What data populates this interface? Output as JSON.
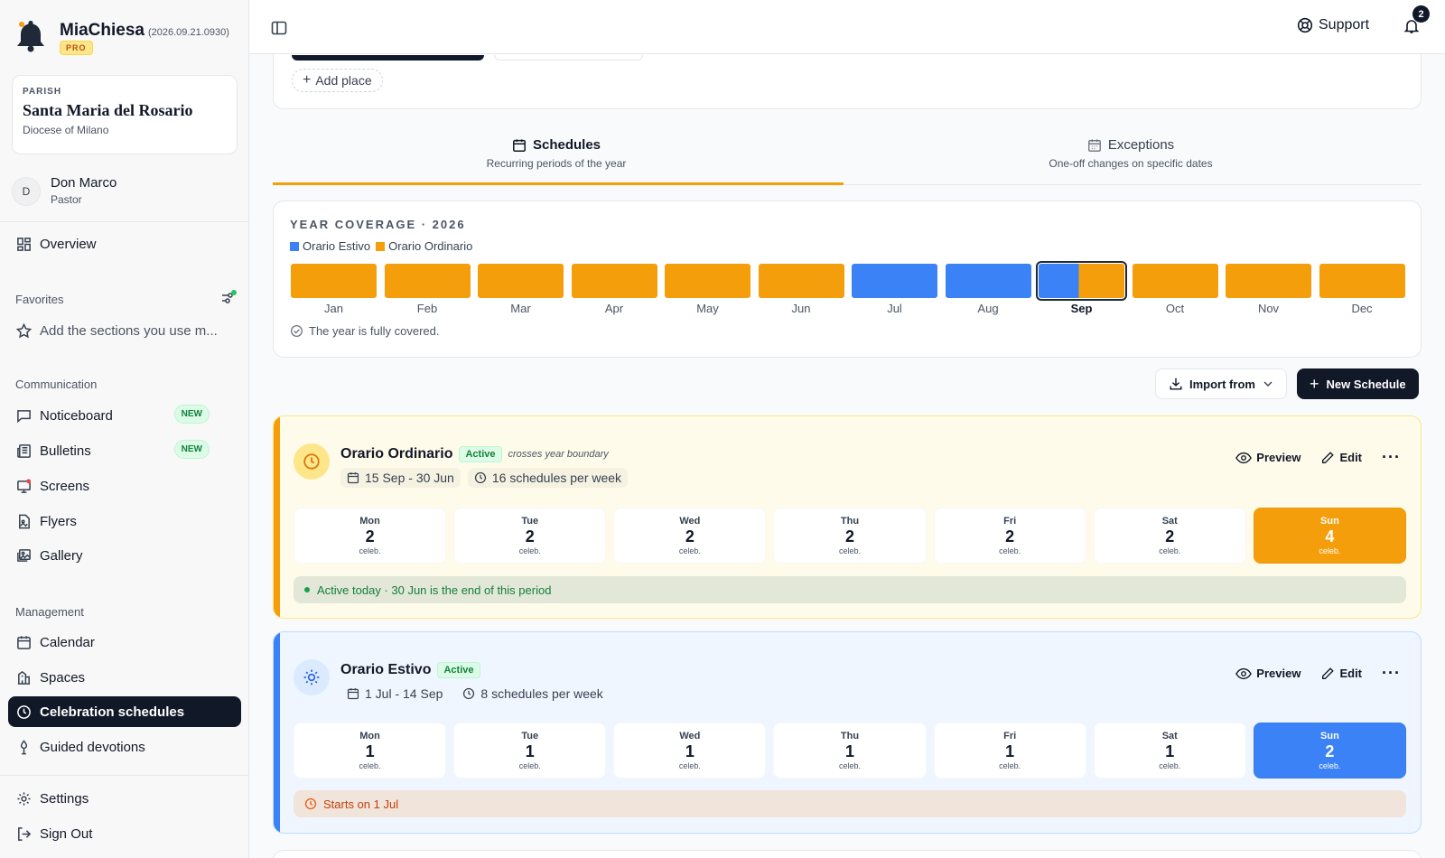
{
  "brand": {
    "name": "MiaChiesa",
    "version": "(2026.09.21.0930)",
    "tier": "PRO"
  },
  "parish": {
    "label": "PARISH",
    "name": "Santa Maria del Rosario",
    "diocese": "Diocese of Milano"
  },
  "user": {
    "initial": "D",
    "name": "Don Marco",
    "role": "Pastor"
  },
  "nav": {
    "overview": "Overview",
    "favorites_title": "Favorites",
    "favorites_hint": "Add the sections you use m...",
    "communication_title": "Communication",
    "noticeboard": "Noticeboard",
    "bulletins": "Bulletins",
    "screens": "Screens",
    "flyers": "Flyers",
    "gallery": "Gallery",
    "new_badge": "NEW",
    "management_title": "Management",
    "calendar": "Calendar",
    "spaces": "Spaces",
    "celebration_schedules": "Celebration schedules",
    "guided_devotions": "Guided devotions",
    "settings": "Settings",
    "sign_out": "Sign Out"
  },
  "topbar": {
    "support": "Support",
    "notifications": "2"
  },
  "places": {
    "add_place": "Add place"
  },
  "tabs": {
    "schedules": {
      "title": "Schedules",
      "subtitle": "Recurring periods of the year"
    },
    "exceptions": {
      "title": "Exceptions",
      "subtitle": "One-off changes on specific dates"
    }
  },
  "coverage": {
    "title": "YEAR COVERAGE · 2026",
    "legend": [
      {
        "name": "Orario Estivo",
        "color": "#3b82f6"
      },
      {
        "name": "Orario Ordinario",
        "color": "#f59e0b"
      }
    ],
    "months": [
      "Jan",
      "Feb",
      "Mar",
      "Apr",
      "May",
      "Jun",
      "Jul",
      "Aug",
      "Sep",
      "Oct",
      "Nov",
      "Dec"
    ],
    "status": "The year is fully covered."
  },
  "actions": {
    "import_from": "Import from",
    "new_schedule": "New Schedule"
  },
  "schedules": [
    {
      "name": "Orario Ordinario",
      "status": "Active",
      "note": "crosses year boundary",
      "range": "15 Sep - 30 Jun",
      "per_week": "16 schedules per week",
      "preview": "Preview",
      "edit": "Edit",
      "days": [
        {
          "d": "Mon",
          "c": "2"
        },
        {
          "d": "Tue",
          "c": "2"
        },
        {
          "d": "Wed",
          "c": "2"
        },
        {
          "d": "Thu",
          "c": "2"
        },
        {
          "d": "Fri",
          "c": "2"
        },
        {
          "d": "Sat",
          "c": "2"
        },
        {
          "d": "Sun",
          "c": "4"
        }
      ],
      "unit": "celeb.",
      "footer": "Active today · 30 Jun is the end of this period"
    },
    {
      "name": "Orario Estivo",
      "status": "Active",
      "range": "1 Jul - 14 Sep",
      "per_week": "8 schedules per week",
      "preview": "Preview",
      "edit": "Edit",
      "days": [
        {
          "d": "Mon",
          "c": "1"
        },
        {
          "d": "Tue",
          "c": "1"
        },
        {
          "d": "Wed",
          "c": "1"
        },
        {
          "d": "Thu",
          "c": "1"
        },
        {
          "d": "Fri",
          "c": "1"
        },
        {
          "d": "Sat",
          "c": "1"
        },
        {
          "d": "Sun",
          "c": "2"
        }
      ],
      "unit": "celeb.",
      "footer": "Starts on 1 Jul"
    }
  ]
}
